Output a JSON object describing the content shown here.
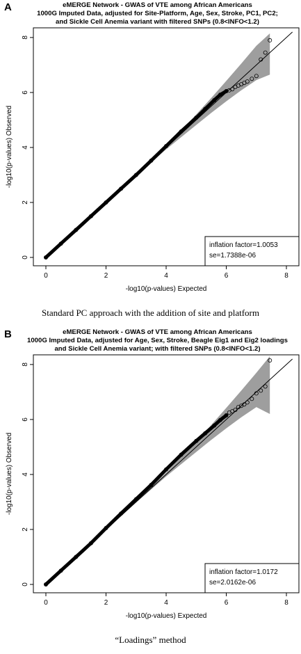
{
  "panels": [
    {
      "letter": "A",
      "title_lines": [
        "eMERGE Network - GWAS of VTE among African Americans",
        "1000G Imputed Data, adjusted for Site-Platform, Age, Sex, Stroke, PC1, PC2;",
        "and Sickle Cell Anemia variant with filtered SNPs (0.8<INFO<1.2)"
      ],
      "caption": "Standard PC approach with the addition of site and platform",
      "legend_lines": [
        "inflation factor=1.0053",
        "se=1.7388e-06"
      ]
    },
    {
      "letter": "B",
      "title_lines": [
        "eMERGE Network - GWAS of VTE among African Americans",
        "1000G Imputed Data, adjusted for Age, Sex, Stroke, Beagle Eig1 and Eig2 loadings",
        "and Sickle Cell Anemia variant; with filtered SNPs (0.8<INFO<1.2)"
      ],
      "caption": "“Loadings” method",
      "legend_lines": [
        "inflation factor=1.0172",
        "se=2.0162e-06"
      ]
    }
  ],
  "chart_data": [
    {
      "type": "scatter",
      "subtype": "qq-plot",
      "title": "eMERGE Network - GWAS of VTE among African Americans",
      "xlabel": "-log10(p-values) Expected",
      "ylabel": "-log10(p-values) Observed",
      "xlim": [
        0,
        8
      ],
      "ylim": [
        0,
        8.2
      ],
      "xticks": [
        0,
        2,
        4,
        6,
        8
      ],
      "yticks": [
        0,
        2,
        4,
        6,
        8
      ],
      "grid": false,
      "legend_placement": "bottom-right",
      "inflation_factor": 1.0053,
      "se": "1.7388e-06",
      "reference_line": [
        [
          0,
          0
        ],
        [
          8.2,
          8.2
        ]
      ],
      "confidence_band": {
        "x": [
          0,
          3,
          4,
          5,
          5.5,
          6,
          6.5,
          7,
          7.45
        ],
        "lower": [
          0,
          2.98,
          3.93,
          4.82,
          5.26,
          5.68,
          6.08,
          6.45,
          6.65
        ],
        "upper": [
          0,
          3.02,
          4.07,
          5.2,
          5.8,
          6.42,
          7.05,
          7.7,
          8.15
        ]
      },
      "points": {
        "x": [
          0,
          0.5,
          1,
          1.5,
          2,
          2.5,
          3,
          3.5,
          4,
          4.5,
          5,
          5.3,
          5.6,
          5.8,
          6.0,
          6.1,
          6.2,
          6.3,
          6.4,
          6.5,
          6.6,
          6.7,
          6.85,
          7.0,
          7.15,
          7.3,
          7.45
        ],
        "y": [
          0,
          0.5,
          1.0,
          1.5,
          2.0,
          2.5,
          3.0,
          3.52,
          4.05,
          4.58,
          5.08,
          5.4,
          5.72,
          5.92,
          6.05,
          6.08,
          6.12,
          6.2,
          6.25,
          6.3,
          6.35,
          6.4,
          6.5,
          6.6,
          7.2,
          7.45,
          7.9
        ]
      }
    },
    {
      "type": "scatter",
      "subtype": "qq-plot",
      "title": "eMERGE Network - GWAS of VTE among African Americans",
      "xlabel": "-log10(p-values) Expected",
      "ylabel": "-log10(p-values) Observed",
      "xlim": [
        0,
        8
      ],
      "ylim": [
        0,
        8.2
      ],
      "xticks": [
        0,
        2,
        4,
        6,
        8
      ],
      "yticks": [
        0,
        2,
        4,
        6,
        8
      ],
      "grid": false,
      "legend_placement": "bottom-right",
      "inflation_factor": 1.0172,
      "se": "2.0162e-06",
      "reference_line": [
        [
          0,
          0
        ],
        [
          8.2,
          8.2
        ]
      ],
      "confidence_band": {
        "x": [
          0,
          3,
          4,
          5,
          5.5,
          6,
          6.5,
          7,
          7.45
        ],
        "lower": [
          0,
          2.98,
          3.93,
          4.82,
          5.26,
          5.68,
          6.08,
          6.45,
          6.2
        ],
        "upper": [
          0,
          3.02,
          4.07,
          5.2,
          5.8,
          6.42,
          7.05,
          7.7,
          8.3
        ]
      },
      "points": {
        "x": [
          0,
          0.5,
          1,
          1.5,
          2,
          2.5,
          3,
          3.5,
          4,
          4.5,
          5,
          5.3,
          5.6,
          5.8,
          6.0,
          6.1,
          6.2,
          6.3,
          6.4,
          6.5,
          6.6,
          6.7,
          6.85,
          7.0,
          7.15,
          7.3,
          7.45
        ],
        "y": [
          0,
          0.5,
          1.0,
          1.5,
          2.05,
          2.58,
          3.1,
          3.62,
          4.18,
          4.72,
          5.22,
          5.5,
          5.78,
          5.98,
          6.15,
          6.25,
          6.3,
          6.35,
          6.45,
          6.5,
          6.55,
          6.62,
          6.75,
          6.95,
          7.05,
          7.2,
          8.15
        ]
      }
    }
  ]
}
